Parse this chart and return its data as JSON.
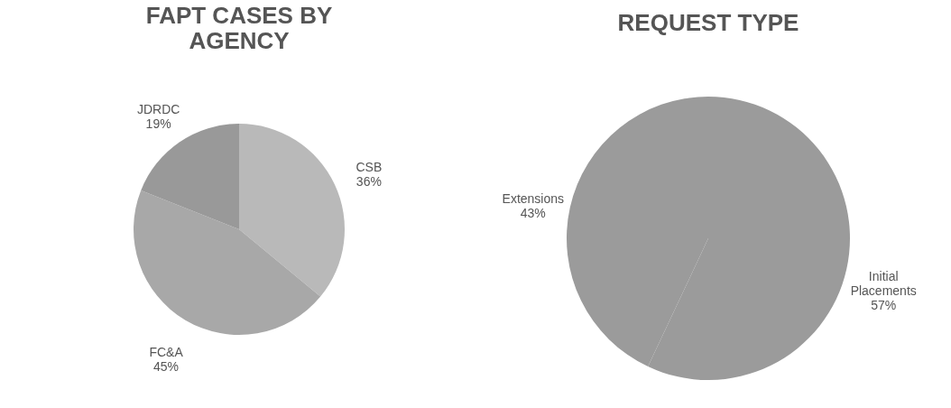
{
  "chart_data": [
    {
      "type": "pie",
      "title": "FAPT CASES BY AGENCY",
      "categories": [
        "CSB",
        "FC&A",
        "JDRDC"
      ],
      "values": [
        36,
        45,
        19
      ],
      "value_labels": [
        "36%",
        "45%",
        "19%"
      ],
      "colors": [
        "#b9b9b9",
        "#a8a8a8",
        "#999999"
      ]
    },
    {
      "type": "pie",
      "title": "REQUEST TYPE",
      "categories": [
        "Initial Placements",
        "Extensions"
      ],
      "values": [
        57,
        43
      ],
      "value_labels": [
        "57%",
        "43%"
      ],
      "colors": [
        "#9b9b9b",
        "#9b9b9b"
      ]
    }
  ]
}
